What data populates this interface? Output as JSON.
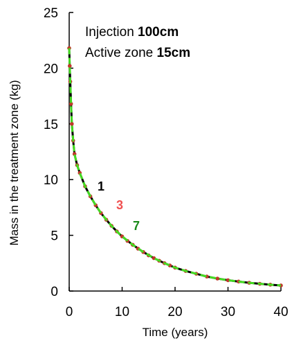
{
  "chart_data": {
    "type": "line",
    "xlabel": "Time (years)",
    "ylabel": "Mass in the treatment zone (kg)",
    "xlim": [
      0,
      40
    ],
    "ylim": [
      0,
      25
    ],
    "x_ticks": [
      "0",
      "10",
      "20",
      "30",
      "40"
    ],
    "y_ticks": [
      "0",
      "5",
      "10",
      "15",
      "20",
      "25"
    ],
    "grid": false,
    "annotation": {
      "line1_text": "Injection ",
      "line1_value": "100cm",
      "line2_text": "Active zone ",
      "line2_value": "15cm"
    },
    "curve_labels": [
      {
        "text": "1",
        "color": "#000000"
      },
      {
        "text": "3",
        "color": "#f05050"
      },
      {
        "text": "7",
        "color": "#1a8a1a"
      }
    ],
    "series": [
      {
        "name": "1",
        "color": "#000000",
        "style": "line",
        "x": [
          0,
          0.1,
          0.2,
          0.35,
          0.5,
          0.75,
          1,
          1.5,
          2,
          3,
          4,
          5,
          6,
          7,
          8,
          9,
          10,
          12,
          14,
          16,
          18,
          20,
          22,
          24,
          26,
          28,
          30,
          32,
          34,
          36,
          38,
          40
        ],
        "y": [
          21.8,
          20.2,
          18.8,
          16.8,
          15.0,
          13.5,
          12.3,
          11.3,
          10.6,
          9.4,
          8.5,
          7.7,
          7.0,
          6.4,
          5.85,
          5.35,
          4.9,
          4.15,
          3.5,
          2.95,
          2.5,
          2.1,
          1.8,
          1.55,
          1.3,
          1.12,
          0.97,
          0.85,
          0.74,
          0.65,
          0.57,
          0.5
        ]
      },
      {
        "name": "3",
        "color": "#c0392b",
        "style": "markers",
        "x": [
          0,
          0.1,
          0.2,
          0.35,
          0.5,
          0.75,
          1,
          1.5,
          2,
          3,
          4,
          5,
          6,
          7,
          8,
          9,
          10,
          11,
          12,
          13,
          14,
          15,
          16,
          17,
          18,
          19,
          20,
          22,
          24,
          26,
          28,
          30,
          32,
          34,
          36,
          38,
          40
        ],
        "y": [
          21.8,
          20.2,
          18.8,
          16.8,
          15.0,
          13.5,
          12.3,
          11.3,
          10.6,
          9.4,
          8.5,
          7.7,
          7.0,
          6.4,
          5.85,
          5.35,
          4.9,
          4.5,
          4.15,
          3.8,
          3.5,
          3.2,
          2.95,
          2.72,
          2.5,
          2.3,
          2.1,
          1.8,
          1.55,
          1.3,
          1.12,
          0.97,
          0.85,
          0.74,
          0.65,
          0.57,
          0.5
        ]
      },
      {
        "name": "7",
        "color": "#44dd22",
        "style": "dashed",
        "x": [
          0,
          0.1,
          0.2,
          0.35,
          0.5,
          0.75,
          1,
          1.5,
          2,
          3,
          4,
          5,
          6,
          7,
          8,
          9,
          10,
          12,
          14,
          16,
          18,
          20,
          22,
          24,
          26,
          28,
          30,
          32,
          34,
          36,
          38,
          40
        ],
        "y": [
          21.8,
          20.2,
          18.8,
          16.8,
          15.0,
          13.5,
          12.3,
          11.3,
          10.6,
          9.4,
          8.5,
          7.7,
          7.0,
          6.4,
          5.85,
          5.35,
          4.9,
          4.15,
          3.5,
          2.95,
          2.5,
          2.1,
          1.8,
          1.55,
          1.3,
          1.12,
          0.97,
          0.85,
          0.74,
          0.65,
          0.57,
          0.5
        ]
      }
    ]
  }
}
